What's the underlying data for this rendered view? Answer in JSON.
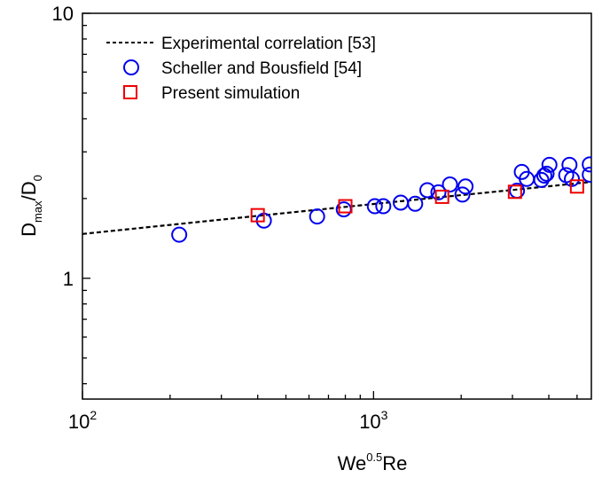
{
  "chart_data": {
    "type": "scatter",
    "x_scale": "log",
    "y_scale": "log",
    "xlim": [
      100,
      5600
    ],
    "ylim": [
      0.35,
      10
    ],
    "x_ticks": [
      {
        "value": 100,
        "base": "10",
        "exp": "2"
      },
      {
        "value": 1000,
        "base": "10",
        "exp": "3"
      }
    ],
    "y_ticks": [
      {
        "value": 1,
        "label": "1"
      },
      {
        "value": 10,
        "label": "10"
      }
    ],
    "xlabel": {
      "base": "We",
      "sup": "0.5",
      "rest": "Re"
    },
    "ylabel": {
      "main": "D",
      "sub1": "max",
      "mid": "/D",
      "sub2": "0"
    },
    "legend_position": "top-left",
    "grid": false,
    "series": [
      {
        "name": "Experimental correlation [53]",
        "kind": "dashed-line",
        "color": "#000000",
        "x": [
          100,
          200,
          400,
          800,
          1600,
          3200,
          5600
        ],
        "y": [
          1.47,
          1.59,
          1.72,
          1.86,
          2.01,
          2.17,
          2.31
        ]
      },
      {
        "name": "Scheller and Bousfield [54]",
        "kind": "open-circle",
        "color": "#0000ee",
        "x": [
          215,
          420,
          640,
          790,
          1010,
          1080,
          1240,
          1390,
          1530,
          1670,
          1830,
          2020,
          2070,
          3110,
          3230,
          3360,
          3770,
          3860,
          3930,
          4020,
          4590,
          4710,
          4800,
          5530,
          5530
        ],
        "y": [
          1.46,
          1.65,
          1.71,
          1.82,
          1.87,
          1.87,
          1.93,
          1.91,
          2.15,
          2.11,
          2.26,
          2.07,
          2.22,
          2.14,
          2.52,
          2.37,
          2.35,
          2.44,
          2.48,
          2.68,
          2.45,
          2.68,
          2.37,
          2.46,
          2.69
        ]
      },
      {
        "name": "Present simulation",
        "kind": "open-square",
        "color": "#ee0000",
        "x": [
          400,
          800,
          1720,
          3060,
          5000
        ],
        "y": [
          1.73,
          1.87,
          2.03,
          2.12,
          2.22
        ]
      }
    ]
  }
}
